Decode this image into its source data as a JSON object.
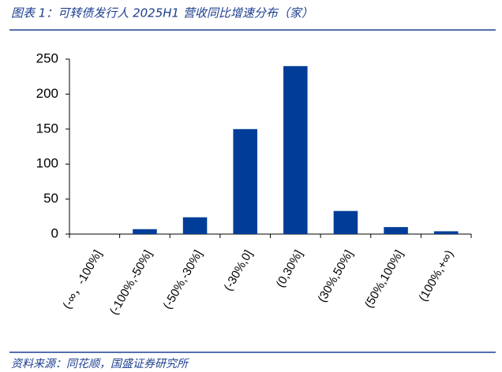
{
  "chart_data": {
    "type": "bar",
    "title": "图表 1：可转债发行人 2025H1 营收同比增速分布（家）",
    "source": "资料来源：同花顺，国盛证券研究所",
    "categories": [
      "(-∞，-100%]",
      "(-100%,-50%]",
      "(-50%,-30%]",
      "(-30%,0]",
      "(0,30%]",
      "(30%,50%]",
      "(50%,100%]",
      "(100%,+∞)"
    ],
    "values": [
      0,
      7,
      24,
      150,
      240,
      33,
      10,
      4
    ],
    "color": "#003d99",
    "ylim": [
      0,
      250
    ],
    "yticks": [
      0,
      50,
      100,
      150,
      200,
      250
    ],
    "grid": false
  }
}
